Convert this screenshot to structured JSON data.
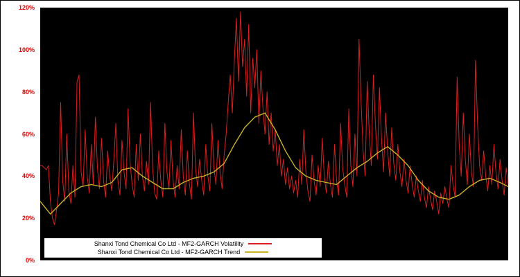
{
  "figure": {
    "background": "#ffffff",
    "plot_background": "#000000",
    "tick_color": "#dd0000"
  },
  "chart_data": {
    "type": "line",
    "title": "",
    "xlabel": "",
    "ylabel": "",
    "ylim": [
      0,
      120
    ],
    "grid": false,
    "legend_position": "bottom-left-inside",
    "yticks": [
      {
        "label": "0%",
        "value": 0
      },
      {
        "label": "20%",
        "value": 20
      },
      {
        "label": "40%",
        "value": 40
      },
      {
        "label": "60%",
        "value": 60
      },
      {
        "label": "80%",
        "value": 80
      },
      {
        "label": "100%",
        "value": 100
      },
      {
        "label": "120%",
        "value": 120
      }
    ],
    "series": [
      {
        "name": "Shanxi Tond Chemical Co Ltd - MF2-GARCH Volatility",
        "color": "#dc1f1f",
        "values": [
          45,
          45,
          44,
          43,
          45,
          28,
          20,
          17,
          24,
          32,
          75,
          38,
          28,
          60,
          33,
          27,
          45,
          30,
          85,
          88,
          42,
          35,
          62,
          40,
          32,
          55,
          36,
          68,
          44,
          34,
          58,
          38,
          30,
          52,
          40,
          33,
          47,
          65,
          38,
          31,
          57,
          42,
          34,
          72,
          46,
          36,
          30,
          55,
          38,
          60,
          40,
          33,
          47,
          36,
          75,
          44,
          32,
          29,
          52,
          38,
          30,
          65,
          42,
          34,
          57,
          38,
          30,
          45,
          34,
          62,
          40,
          31,
          52,
          36,
          29,
          70,
          44,
          35,
          48,
          38,
          31,
          55,
          40,
          33,
          65,
          44,
          36,
          57,
          42,
          34,
          50,
          60,
          75,
          88,
          70,
          95,
          115,
          85,
          118,
          92,
          105,
          78,
          112,
          70,
          96,
          82,
          100,
          65,
          90,
          72,
          60,
          80,
          55,
          70,
          52,
          62,
          45,
          55,
          40,
          48,
          36,
          44,
          34,
          40,
          32,
          38,
          30,
          48,
          36,
          62,
          42,
          33,
          28,
          50,
          38,
          31,
          45,
          35,
          58,
          40,
          32,
          47,
          36,
          30,
          55,
          38,
          31,
          65,
          44,
          36,
          30,
          72,
          45,
          35,
          60,
          40,
          105,
          75,
          52,
          40,
          85,
          60,
          45,
          88,
          65,
          48,
          82,
          58,
          42,
          70,
          52,
          40,
          63,
          46,
          38,
          55,
          42,
          35,
          48,
          38,
          32,
          45,
          36,
          30,
          40,
          33,
          28,
          38,
          30,
          25,
          35,
          29,
          24,
          33,
          28,
          22,
          32,
          27,
          35,
          29,
          25,
          45,
          36,
          30,
          87,
          55,
          40,
          70,
          48,
          36,
          60,
          42,
          35,
          95,
          65,
          45,
          38,
          52,
          40,
          33,
          45,
          36,
          55,
          42,
          34,
          48,
          38,
          31,
          44,
          36
        ]
      },
      {
        "name": "Shanxi Tond Chemical Co Ltd - MF2-GARCH Trend",
        "color": "#c8b22a",
        "points": [
          [
            0,
            28
          ],
          [
            5,
            22
          ],
          [
            10,
            27
          ],
          [
            15,
            32
          ],
          [
            20,
            35
          ],
          [
            25,
            36
          ],
          [
            30,
            35
          ],
          [
            35,
            37
          ],
          [
            40,
            43
          ],
          [
            45,
            44
          ],
          [
            50,
            40
          ],
          [
            55,
            37
          ],
          [
            60,
            34
          ],
          [
            65,
            34
          ],
          [
            70,
            37
          ],
          [
            75,
            39
          ],
          [
            80,
            40
          ],
          [
            85,
            42
          ],
          [
            90,
            46
          ],
          [
            95,
            55
          ],
          [
            100,
            63
          ],
          [
            105,
            68
          ],
          [
            110,
            70
          ],
          [
            115,
            62
          ],
          [
            120,
            52
          ],
          [
            125,
            44
          ],
          [
            130,
            40
          ],
          [
            135,
            38
          ],
          [
            140,
            37
          ],
          [
            145,
            36
          ],
          [
            150,
            40
          ],
          [
            155,
            44
          ],
          [
            160,
            47
          ],
          [
            165,
            51
          ],
          [
            170,
            54
          ],
          [
            175,
            50
          ],
          [
            180,
            45
          ],
          [
            185,
            38
          ],
          [
            190,
            33
          ],
          [
            195,
            30
          ],
          [
            200,
            29
          ],
          [
            205,
            31
          ],
          [
            210,
            35
          ],
          [
            215,
            38
          ],
          [
            220,
            39
          ],
          [
            225,
            37
          ],
          [
            229,
            35
          ]
        ]
      }
    ]
  }
}
